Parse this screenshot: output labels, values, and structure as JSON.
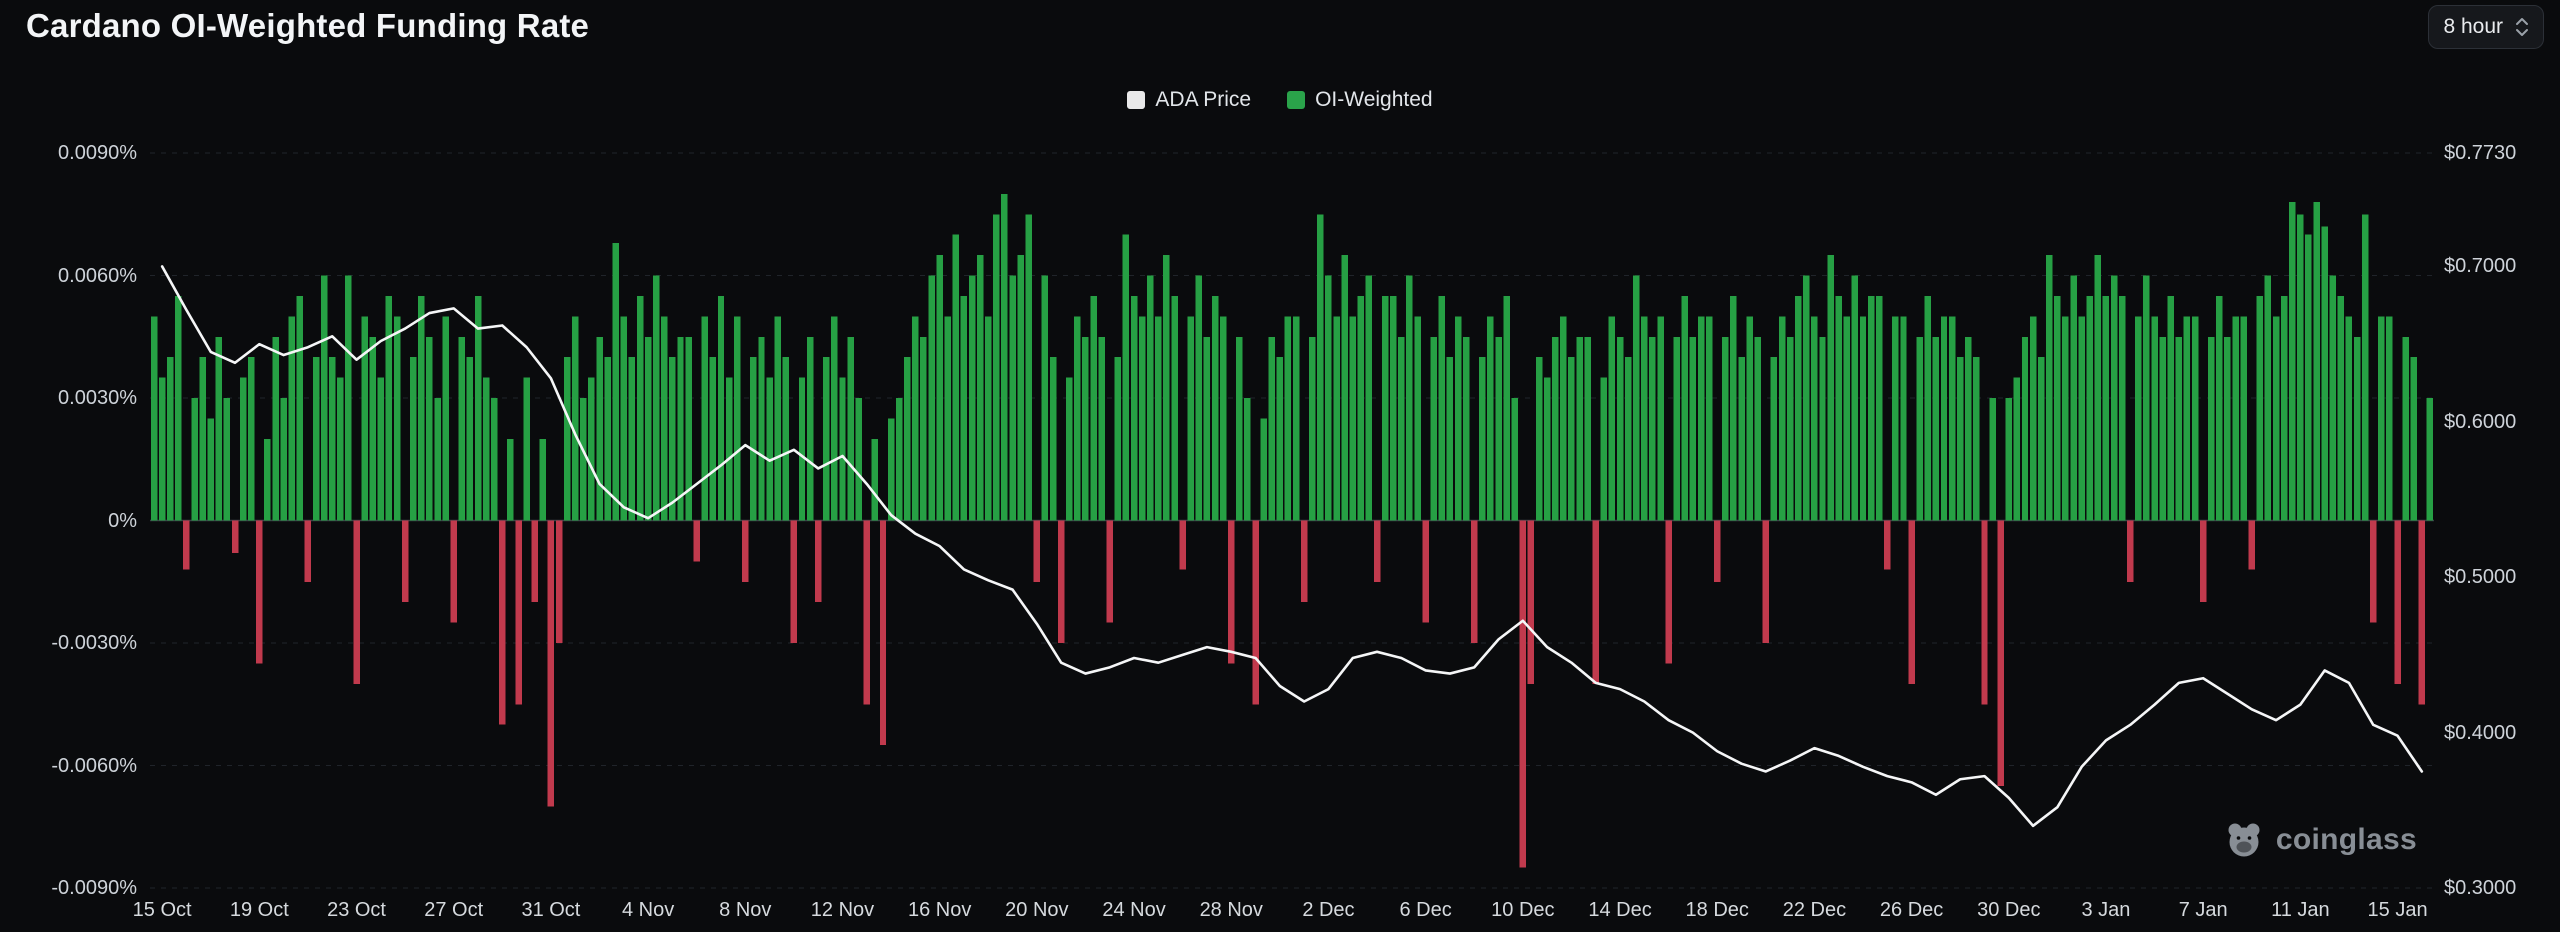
{
  "page": {
    "title": "Cardano OI-Weighted Funding Rate"
  },
  "controls": {
    "interval": "8 hour"
  },
  "legend": [
    {
      "label": "ADA Price",
      "color": "#e9e9e9"
    },
    {
      "label": "OI-Weighted",
      "color": "#2aa34a"
    }
  ],
  "watermark": {
    "brand": "coinglass"
  },
  "chart_data": {
    "type": "bar+line",
    "title": "Cardano OI-Weighted Funding Rate",
    "grid": "dashed-horizontal",
    "legend_position": "top-center",
    "total_days": 94,
    "days_per_tick": 4,
    "x_ticks": [
      "15 Oct",
      "19 Oct",
      "23 Oct",
      "27 Oct",
      "31 Oct",
      "4 Nov",
      "8 Nov",
      "12 Nov",
      "16 Nov",
      "20 Nov",
      "24 Nov",
      "28 Nov",
      "2 Dec",
      "6 Dec",
      "10 Dec",
      "14 Dec",
      "18 Dec",
      "22 Dec",
      "26 Dec",
      "30 Dec",
      "3 Jan",
      "7 Jan",
      "11 Jan",
      "15 Jan"
    ],
    "left_axis": {
      "label": "OI-Weighted Funding Rate",
      "unit": "%",
      "max": 0.009,
      "min": -0.009,
      "ticks": [
        "0.0090%",
        "0.0060%",
        "0.0030%",
        "0%",
        "-0.0030%",
        "-0.0060%",
        "-0.0090%"
      ]
    },
    "right_axis": {
      "label": "ADA Price",
      "unit": "$",
      "max": 0.773,
      "min": 0.3,
      "ticks": [
        "$0.7730",
        "$0.7000",
        "$0.6000",
        "$0.5000",
        "$0.4000",
        "$0.3000"
      ],
      "values": [
        0.773,
        0.7,
        0.6,
        0.5,
        0.4,
        0.3
      ]
    },
    "series": [
      {
        "name": "OI-Weighted",
        "type": "bar",
        "color_pos": "#26a044",
        "color_neg": "#c13a4d",
        "points_per_day": 3,
        "values": [
          0.005,
          0.0035,
          0.004,
          0.0055,
          -0.0012,
          0.003,
          0.004,
          0.0025,
          0.0045,
          0.003,
          -0.0008,
          0.0035,
          0.004,
          -0.0035,
          0.002,
          0.0045,
          0.003,
          0.005,
          0.0055,
          -0.0015,
          0.004,
          0.006,
          0.004,
          0.0035,
          0.006,
          -0.004,
          0.005,
          0.0045,
          0.0035,
          0.0055,
          0.005,
          -0.002,
          0.004,
          0.0055,
          0.0045,
          0.003,
          0.005,
          -0.0025,
          0.0045,
          0.004,
          0.0055,
          0.0035,
          0.003,
          -0.005,
          0.002,
          -0.0045,
          0.0035,
          -0.002,
          0.002,
          -0.007,
          -0.003,
          0.004,
          0.005,
          0.003,
          0.0035,
          0.0045,
          0.004,
          0.0068,
          0.005,
          0.004,
          0.0055,
          0.0045,
          0.006,
          0.005,
          0.004,
          0.0045,
          0.0045,
          -0.001,
          0.005,
          0.004,
          0.0055,
          0.0035,
          0.005,
          -0.0015,
          0.004,
          0.0045,
          0.0035,
          0.005,
          0.004,
          -0.003,
          0.0035,
          0.0045,
          -0.002,
          0.004,
          0.005,
          0.0035,
          0.0045,
          0.003,
          -0.0045,
          0.002,
          -0.0055,
          0.0025,
          0.003,
          0.004,
          0.005,
          0.0045,
          0.006,
          0.0065,
          0.005,
          0.007,
          0.0055,
          0.006,
          0.0065,
          0.005,
          0.0075,
          0.008,
          0.006,
          0.0065,
          0.0075,
          -0.0015,
          0.006,
          0.004,
          -0.003,
          0.0035,
          0.005,
          0.0045,
          0.0055,
          0.0045,
          -0.0025,
          0.004,
          0.007,
          0.0055,
          0.005,
          0.006,
          0.005,
          0.0065,
          0.0055,
          -0.0012,
          0.005,
          0.006,
          0.0045,
          0.0055,
          0.005,
          -0.0035,
          0.0045,
          0.003,
          -0.0045,
          0.0025,
          0.0045,
          0.004,
          0.005,
          0.005,
          -0.002,
          0.0045,
          0.0075,
          0.006,
          0.005,
          0.0065,
          0.005,
          0.0055,
          0.006,
          -0.0015,
          0.0055,
          0.0055,
          0.0045,
          0.006,
          0.005,
          -0.0025,
          0.0045,
          0.0055,
          0.004,
          0.005,
          0.0045,
          -0.003,
          0.004,
          0.005,
          0.0045,
          0.0055,
          0.003,
          -0.0085,
          -0.004,
          0.004,
          0.0035,
          0.0045,
          0.005,
          0.004,
          0.0045,
          0.0045,
          -0.004,
          0.0035,
          0.005,
          0.0045,
          0.004,
          0.006,
          0.005,
          0.0045,
          0.005,
          -0.0035,
          0.0045,
          0.0055,
          0.0045,
          0.005,
          0.005,
          -0.0015,
          0.0045,
          0.0055,
          0.004,
          0.005,
          0.0045,
          -0.003,
          0.004,
          0.005,
          0.0045,
          0.0055,
          0.006,
          0.005,
          0.0045,
          0.0065,
          0.0055,
          0.005,
          0.006,
          0.005,
          0.0055,
          0.0055,
          -0.0012,
          0.005,
          0.005,
          -0.004,
          0.0045,
          0.0055,
          0.0045,
          0.005,
          0.005,
          0.004,
          0.0045,
          0.004,
          -0.0045,
          0.003,
          -0.0065,
          0.003,
          0.0035,
          0.0045,
          0.005,
          0.004,
          0.0065,
          0.0055,
          0.005,
          0.006,
          0.005,
          0.0055,
          0.0065,
          0.0055,
          0.006,
          0.0055,
          -0.0015,
          0.005,
          0.006,
          0.005,
          0.0045,
          0.0055,
          0.0045,
          0.005,
          0.005,
          -0.002,
          0.0045,
          0.0055,
          0.0045,
          0.005,
          0.005,
          -0.0012,
          0.0055,
          0.006,
          0.005,
          0.0055,
          0.0078,
          0.0075,
          0.007,
          0.0078,
          0.0072,
          0.006,
          0.0055,
          0.005,
          0.0045,
          0.0075,
          -0.0025,
          0.005,
          0.005,
          -0.004,
          0.0045,
          0.004,
          -0.0045,
          0.003
        ]
      },
      {
        "name": "ADA Price",
        "type": "line",
        "color": "#f5f6f7",
        "points_per_day": 1,
        "values": [
          0.7,
          0.672,
          0.645,
          0.638,
          0.65,
          0.643,
          0.648,
          0.655,
          0.64,
          0.652,
          0.66,
          0.67,
          0.673,
          0.66,
          0.662,
          0.648,
          0.628,
          0.592,
          0.56,
          0.545,
          0.538,
          0.548,
          0.56,
          0.572,
          0.585,
          0.575,
          0.582,
          0.57,
          0.578,
          0.56,
          0.54,
          0.528,
          0.52,
          0.505,
          0.498,
          0.492,
          0.47,
          0.445,
          0.438,
          0.442,
          0.448,
          0.445,
          0.45,
          0.455,
          0.452,
          0.448,
          0.43,
          0.42,
          0.428,
          0.448,
          0.452,
          0.448,
          0.44,
          0.438,
          0.442,
          0.46,
          0.472,
          0.455,
          0.445,
          0.432,
          0.428,
          0.42,
          0.408,
          0.4,
          0.388,
          0.38,
          0.375,
          0.382,
          0.39,
          0.385,
          0.378,
          0.372,
          0.368,
          0.36,
          0.37,
          0.372,
          0.358,
          0.34,
          0.352,
          0.378,
          0.395,
          0.405,
          0.418,
          0.432,
          0.435,
          0.425,
          0.415,
          0.408,
          0.418,
          0.44,
          0.432,
          0.405,
          0.398,
          0.375
        ]
      }
    ]
  }
}
